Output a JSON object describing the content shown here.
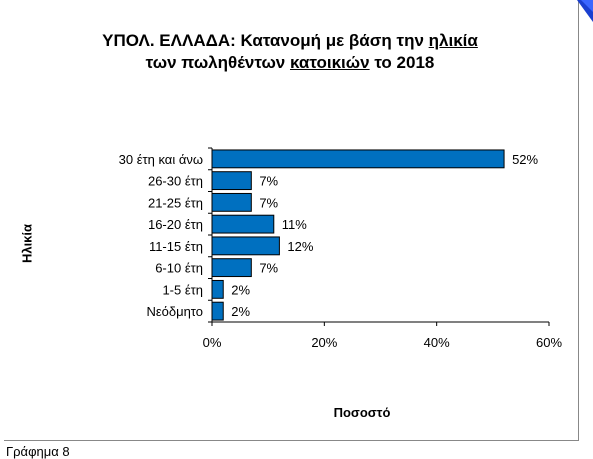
{
  "title": {
    "line1_prefix": "ΥΠΟΛ.  ΕΛΛΑΔΑ:  Κατανομή με βάση την ",
    "line1_underlined": "ηλικία",
    "line2_prefix": "των πωληθέντων ",
    "line2_underlined": "κατοικιών",
    "line2_suffix": " το 2018"
  },
  "caption": "Γράφημα 8",
  "colors": {
    "bar": "#0070c0",
    "bar_stroke": "#000000",
    "axis": "#000000"
  },
  "chart_data": {
    "type": "bar",
    "orientation": "horizontal",
    "categories": [
      "30 έτη και άνω",
      "26-30 έτη",
      "21-25 έτη",
      "16-20 έτη",
      "11-15 έτη",
      "6-10 έτη",
      "1-5 έτη",
      "Νεόδμητο"
    ],
    "values": [
      52,
      7,
      7,
      11,
      12,
      7,
      2,
      2
    ],
    "data_labels": [
      "52%",
      "7%",
      "7%",
      "11%",
      "12%",
      "7%",
      "2%",
      "2%"
    ],
    "xlabel": "Ποσοστό",
    "ylabel": "Ηλικία",
    "xlim": [
      0,
      60
    ],
    "xticks": [
      0,
      20,
      40,
      60
    ],
    "xtick_labels": [
      "0%",
      "20%",
      "40%",
      "60%"
    ],
    "grid": false
  }
}
